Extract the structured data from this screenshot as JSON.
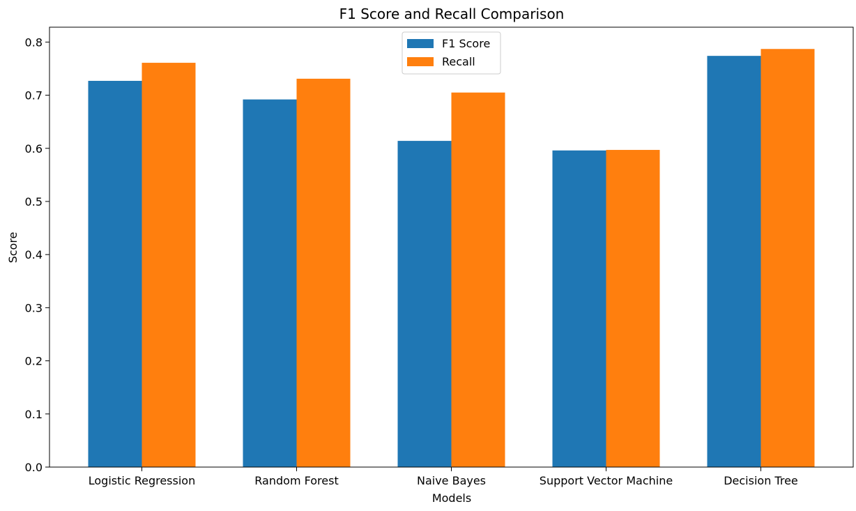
{
  "chart_data": {
    "type": "bar",
    "title": "F1 Score and Recall Comparison",
    "xlabel": "Models",
    "ylabel": "Score",
    "categories": [
      "Logistic Regression",
      "Random Forest",
      "Naive Bayes",
      "Support Vector Machine",
      "Decision Tree"
    ],
    "series": [
      {
        "name": "F1 Score",
        "color": "#1f77b4",
        "values": [
          0.727,
          0.692,
          0.614,
          0.596,
          0.774
        ]
      },
      {
        "name": "Recall",
        "color": "#ff7f0e",
        "values": [
          0.761,
          0.731,
          0.705,
          0.597,
          0.787
        ]
      }
    ],
    "ylim": [
      0,
      0.828
    ],
    "yticks": [
      "0.0",
      "0.1",
      "0.2",
      "0.3",
      "0.4",
      "0.5",
      "0.6",
      "0.7",
      "0.8"
    ],
    "grid": false,
    "legend_position": "top-center"
  }
}
